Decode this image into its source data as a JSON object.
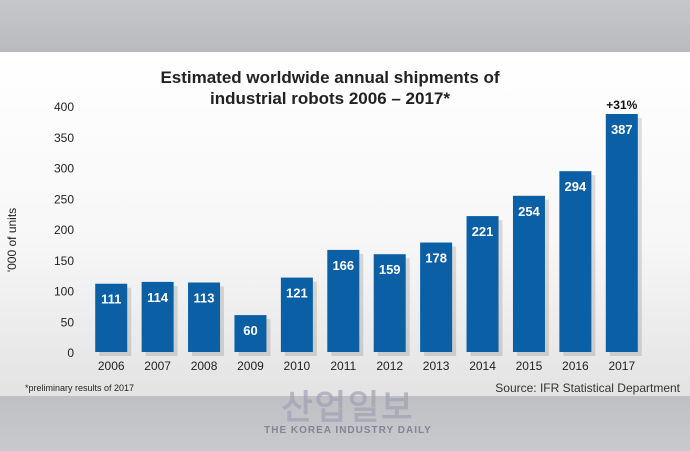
{
  "chart_data": {
    "type": "bar",
    "title_line1": "Estimated worldwide annual shipments of",
    "title_line2": "industrial robots 2006 – 2017*",
    "ylabel": "'000 of units",
    "xlabel": "",
    "ylim": [
      0,
      400
    ],
    "yticks": [
      0,
      50,
      100,
      150,
      200,
      250,
      300,
      350,
      400
    ],
    "categories": [
      "2006",
      "2007",
      "2008",
      "2009",
      "2010",
      "2011",
      "2012",
      "2013",
      "2014",
      "2015",
      "2016",
      "2017"
    ],
    "values": [
      111,
      114,
      113,
      60,
      121,
      166,
      159,
      178,
      221,
      254,
      294,
      387
    ],
    "annotation": {
      "category": "2017",
      "text": "+31%"
    },
    "grid": false,
    "bar_color": "#0b5fa5"
  },
  "footnote": "*preliminary results of 2017",
  "source": "Source: IFR Statistical Department",
  "watermark": {
    "main": "산업일보",
    "sub": "THE KOREA INDUSTRY DAILY"
  }
}
